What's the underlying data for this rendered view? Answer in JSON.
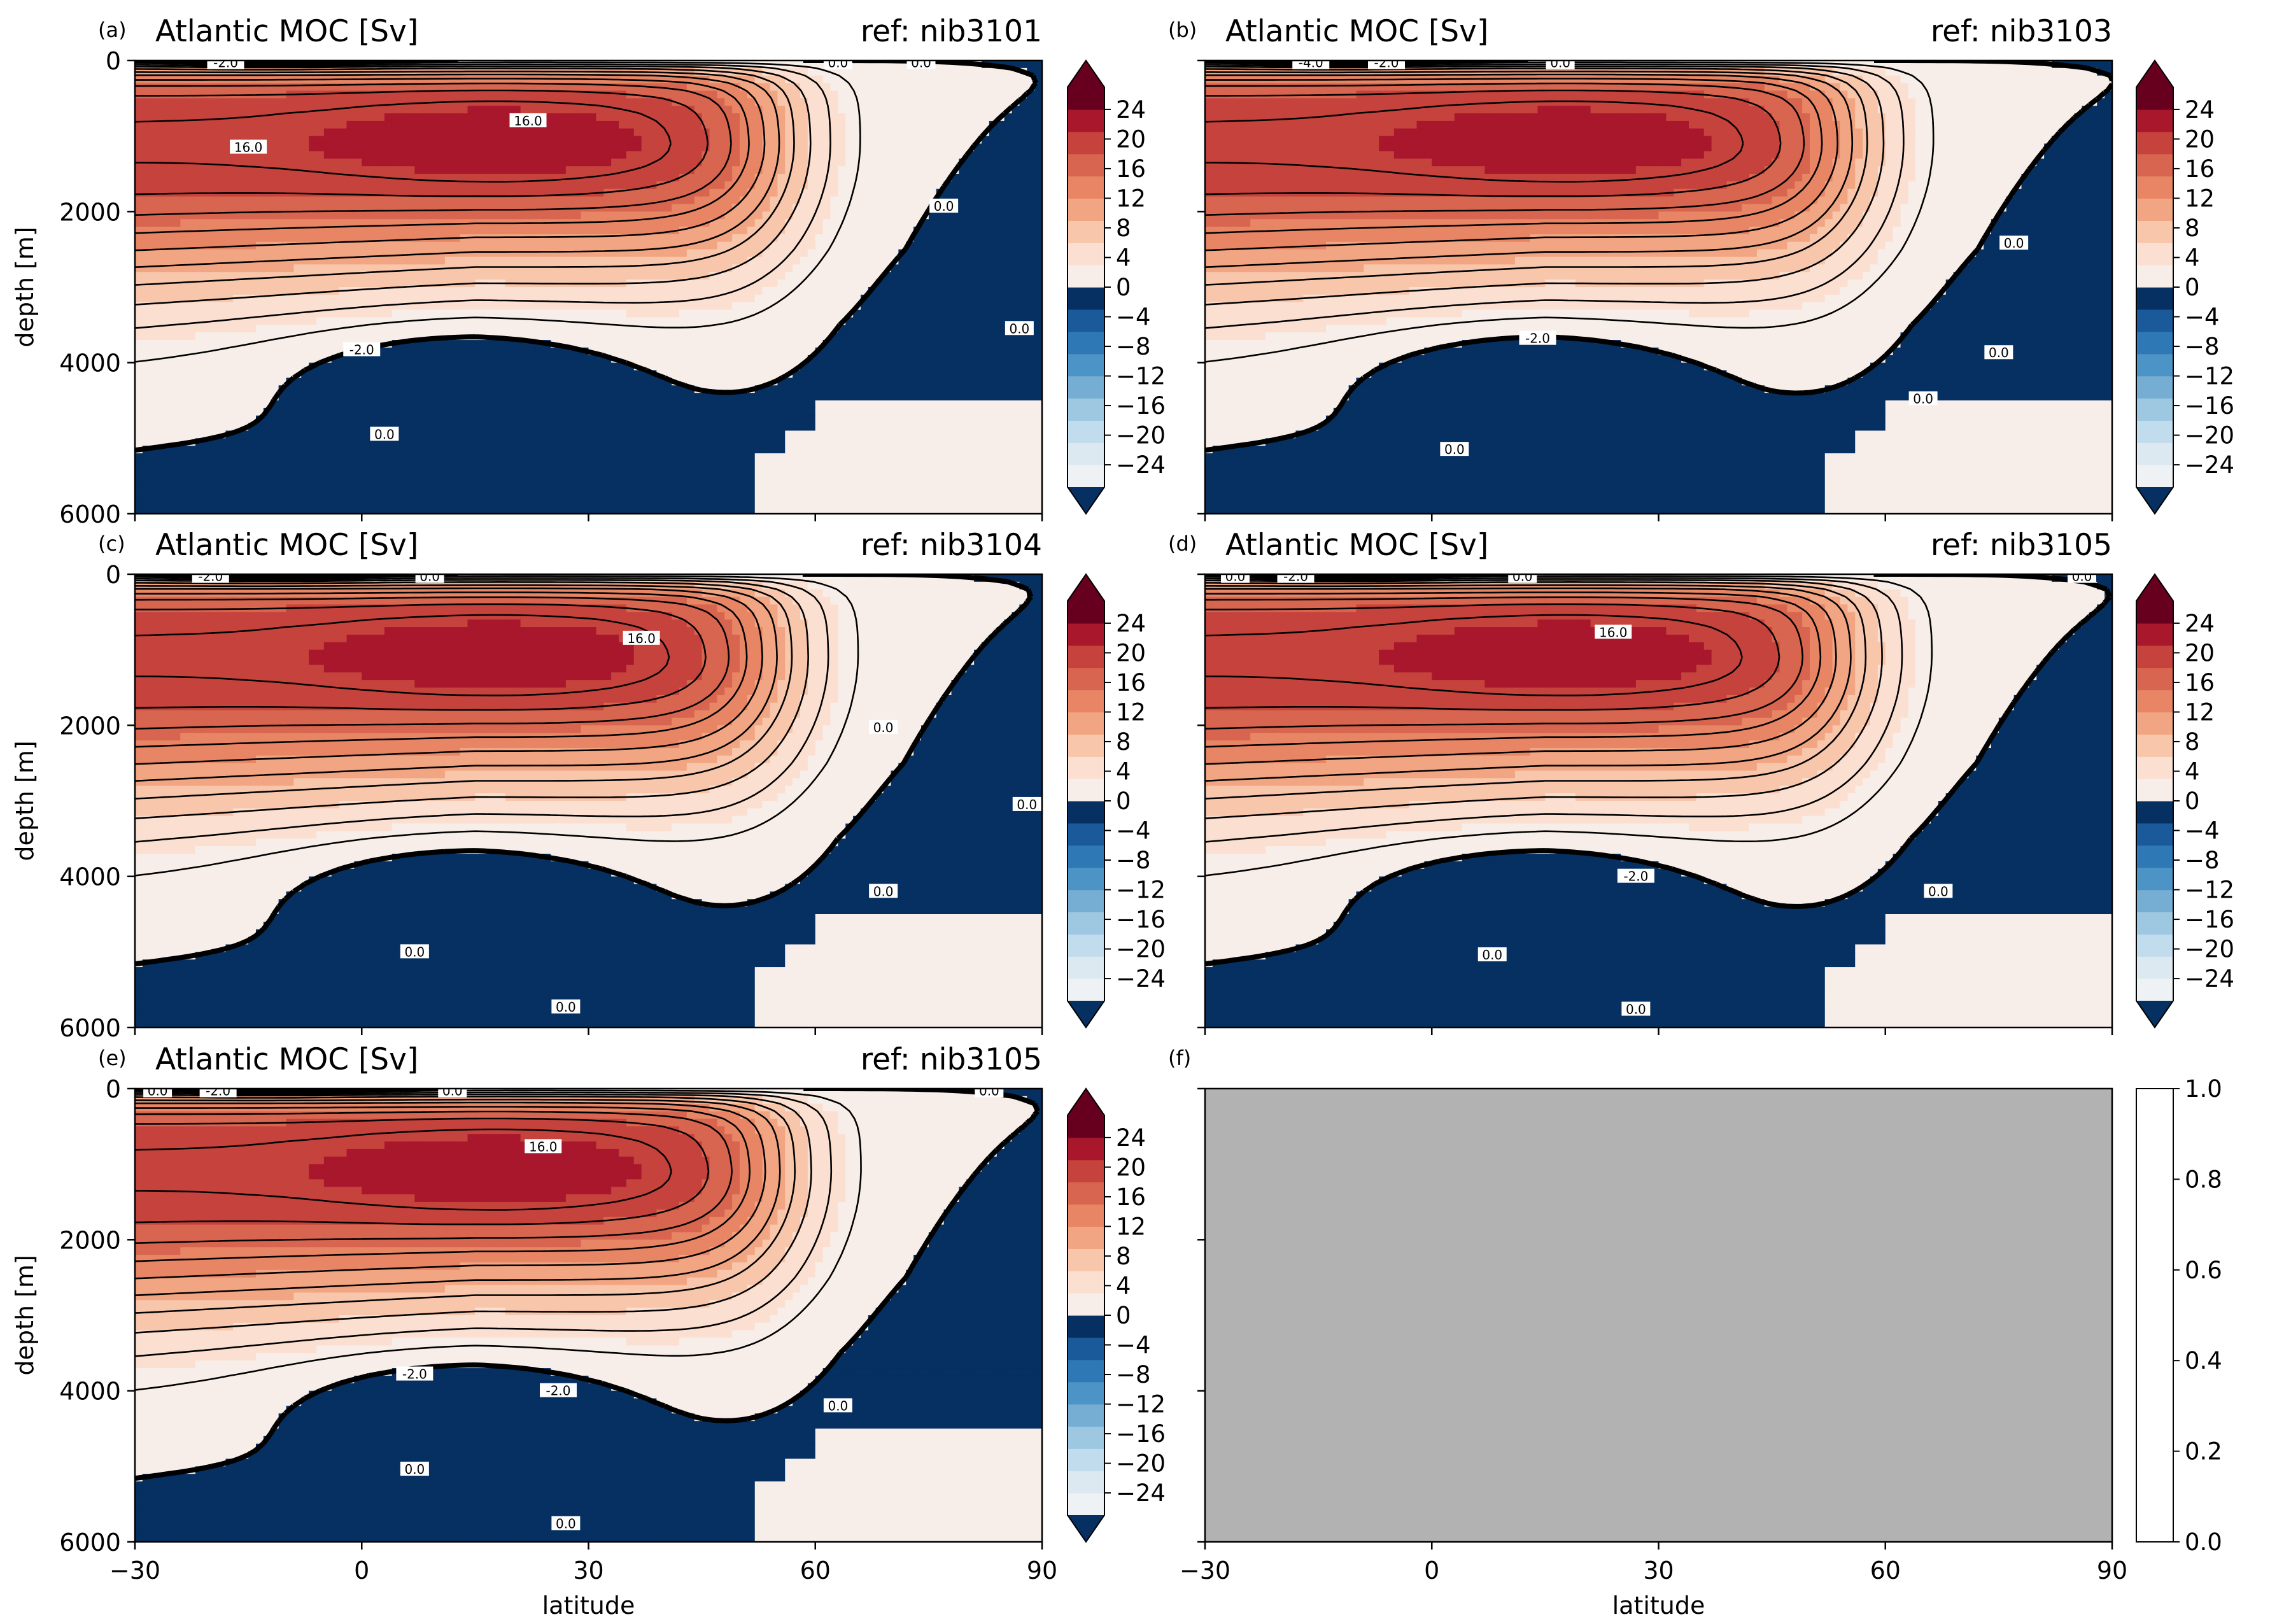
{
  "chart_data": [
    {
      "type": "heatmap",
      "subplot_label": "(a)",
      "title": "Atlantic MOC [Sv]",
      "ref": "ref: nib3101",
      "ylabel": "depth [m]",
      "xlabel": "",
      "xlim": [
        -30,
        90
      ],
      "ylim": [
        6000,
        0
      ],
      "x_ticks": [],
      "y_ticks": [
        "0",
        "2000",
        "4000",
        "6000"
      ],
      "contour_labels": [
        {
          "text": "-2.0",
          "x": -18,
          "y": 30
        },
        {
          "text": "0.0",
          "x": 63,
          "y": 30
        },
        {
          "text": "0.0",
          "x": 74,
          "y": 30
        },
        {
          "text": "16.0",
          "x": -15,
          "y": 1150
        },
        {
          "text": "16.0",
          "x": 22,
          "y": 800
        },
        {
          "text": "0.0",
          "x": 77,
          "y": 1930
        },
        {
          "text": "0.0",
          "x": 87,
          "y": 3550
        },
        {
          "text": "-2.0",
          "x": 0,
          "y": 3830
        },
        {
          "text": "0.0",
          "x": 3,
          "y": 4950
        }
      ],
      "colorbar": {
        "ticks": [
          "24",
          "20",
          "16",
          "12",
          "8",
          "4",
          "0",
          "−4",
          "−8",
          "−12",
          "−16",
          "−20",
          "−24"
        ],
        "extend": "both"
      }
    },
    {
      "type": "heatmap",
      "subplot_label": "(b)",
      "title": "Atlantic MOC [Sv]",
      "ref": "ref: nib3103",
      "ylabel": "",
      "xlabel": "",
      "xlim": [
        -30,
        90
      ],
      "ylim": [
        6000,
        0
      ],
      "x_ticks": [],
      "y_ticks": [],
      "contour_labels": [
        {
          "text": "-4.0",
          "x": -16,
          "y": 30
        },
        {
          "text": "-2.0",
          "x": -6,
          "y": 30
        },
        {
          "text": "0.0",
          "x": 17,
          "y": 30
        },
        {
          "text": "-2.0",
          "x": 14,
          "y": 3680
        },
        {
          "text": "0.0",
          "x": 77,
          "y": 2420
        },
        {
          "text": "0.0",
          "x": 75,
          "y": 3870
        },
        {
          "text": "0.0",
          "x": 65,
          "y": 4480
        },
        {
          "text": "0.0",
          "x": 3,
          "y": 5150
        }
      ],
      "colorbar": {
        "ticks": [
          "24",
          "20",
          "16",
          "12",
          "8",
          "4",
          "0",
          "−4",
          "−8",
          "−12",
          "−16",
          "−20",
          "−24"
        ],
        "extend": "both"
      }
    },
    {
      "type": "heatmap",
      "subplot_label": "(c)",
      "title": "Atlantic MOC [Sv]",
      "ref": "ref: nib3104",
      "ylabel": "depth [m]",
      "xlabel": "",
      "xlim": [
        -30,
        90
      ],
      "ylim": [
        6000,
        0
      ],
      "x_ticks": [],
      "y_ticks": [
        "0",
        "2000",
        "4000",
        "6000"
      ],
      "contour_labels": [
        {
          "text": "-2.0",
          "x": -20,
          "y": 30
        },
        {
          "text": "0.0",
          "x": 9,
          "y": 30
        },
        {
          "text": "16.0",
          "x": 37,
          "y": 850
        },
        {
          "text": "0.0",
          "x": 69,
          "y": 2030
        },
        {
          "text": "0.0",
          "x": 88,
          "y": 3050
        },
        {
          "text": "0.0",
          "x": 69,
          "y": 4200
        },
        {
          "text": "0.0",
          "x": 7,
          "y": 5000
        },
        {
          "text": "0.0",
          "x": 27,
          "y": 5730
        }
      ],
      "colorbar": {
        "ticks": [
          "24",
          "20",
          "16",
          "12",
          "8",
          "4",
          "0",
          "−4",
          "−8",
          "−12",
          "−16",
          "−20",
          "−24"
        ],
        "extend": "both"
      }
    },
    {
      "type": "heatmap",
      "subplot_label": "(d)",
      "title": "Atlantic MOC [Sv]",
      "ref": "ref: nib3105",
      "ylabel": "",
      "xlabel": "",
      "xlim": [
        -30,
        90
      ],
      "ylim": [
        6000,
        0
      ],
      "x_ticks": [],
      "y_ticks": [],
      "contour_labels": [
        {
          "text": "0.0",
          "x": -26,
          "y": 30
        },
        {
          "text": "-2.0",
          "x": -18,
          "y": 30
        },
        {
          "text": "0.0",
          "x": 12,
          "y": 30
        },
        {
          "text": "0.0",
          "x": 86,
          "y": 30
        },
        {
          "text": "16.0",
          "x": 24,
          "y": 770
        },
        {
          "text": "-2.0",
          "x": 27,
          "y": 4000
        },
        {
          "text": "0.0",
          "x": 67,
          "y": 4200
        },
        {
          "text": "0.0",
          "x": 8,
          "y": 5040
        },
        {
          "text": "0.0",
          "x": 27,
          "y": 5760
        }
      ],
      "colorbar": {
        "ticks": [
          "24",
          "20",
          "16",
          "12",
          "8",
          "4",
          "0",
          "−4",
          "−8",
          "−12",
          "−16",
          "−20",
          "−24"
        ],
        "extend": "both"
      }
    },
    {
      "type": "heatmap",
      "subplot_label": "(e)",
      "title": "Atlantic MOC [Sv]",
      "ref": "ref: nib3105",
      "ylabel": "depth [m]",
      "xlabel": "latitude",
      "xlim": [
        -30,
        90
      ],
      "ylim": [
        6000,
        0
      ],
      "x_ticks": [
        "−30",
        "0",
        "30",
        "60",
        "90"
      ],
      "y_ticks": [
        "0",
        "2000",
        "4000",
        "6000"
      ],
      "contour_labels": [
        {
          "text": "0.0",
          "x": -27,
          "y": 30
        },
        {
          "text": "-2.0",
          "x": -19,
          "y": 30
        },
        {
          "text": "0.0",
          "x": 12,
          "y": 30
        },
        {
          "text": "0.0",
          "x": 83,
          "y": 30
        },
        {
          "text": "16.0",
          "x": 24,
          "y": 770
        },
        {
          "text": "-2.0",
          "x": 7,
          "y": 3780
        },
        {
          "text": "-2.0",
          "x": 26,
          "y": 4000
        },
        {
          "text": "0.0",
          "x": 63,
          "y": 4200
        },
        {
          "text": "0.0",
          "x": 7,
          "y": 5040
        },
        {
          "text": "0.0",
          "x": 27,
          "y": 5760
        }
      ],
      "colorbar": {
        "ticks": [
          "24",
          "20",
          "16",
          "12",
          "8",
          "4",
          "0",
          "−4",
          "−8",
          "−12",
          "−16",
          "−20",
          "−24"
        ],
        "extend": "both"
      }
    },
    {
      "type": "heatmap",
      "subplot_label": "(f)",
      "title": "",
      "ref": "",
      "ylabel": "",
      "xlabel": "latitude",
      "xlim": [
        -30,
        90
      ],
      "ylim": [
        6000,
        0
      ],
      "x_ticks": [
        "−30",
        "0",
        "30",
        "60",
        "90"
      ],
      "y_ticks": [],
      "empty_panel": true,
      "colorbar": {
        "ticks": [
          "1.0",
          "0.8",
          "0.6",
          "0.4",
          "0.2",
          "0.0"
        ],
        "extend": "neither"
      }
    }
  ],
  "colors": {
    "neg_levels": [
      "#053061",
      "#1a5a9b",
      "#2e79b5",
      "#4d94c6",
      "#75add3",
      "#9ec7e1",
      "#c1dcec",
      "#dde9f1",
      "#eef2f5"
    ],
    "pos_levels": [
      "#f7eee9",
      "#fbe0d1",
      "#f8c6ab",
      "#f2a582",
      "#e78565",
      "#d8654f",
      "#c6423c",
      "#a9172d",
      "#67001f"
    ],
    "empty_panel": "#b2b2b2",
    "contour": "#000000"
  }
}
